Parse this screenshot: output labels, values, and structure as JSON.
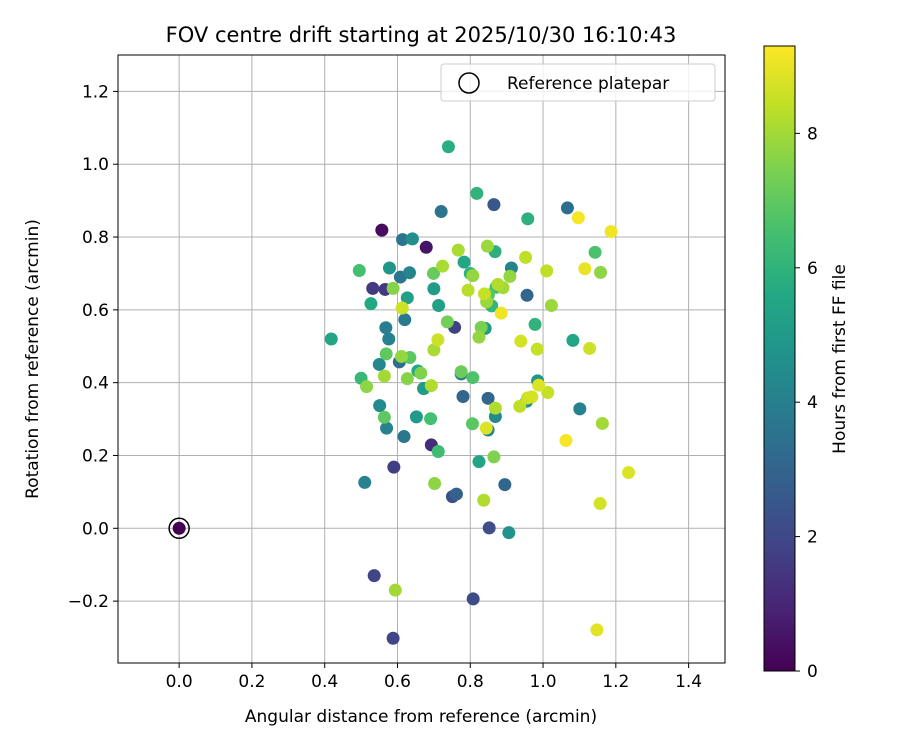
{
  "chart_data": {
    "type": "scatter",
    "title": "FOV centre drift starting at 2025/10/30 16:10:43",
    "xlabel": "Angular distance from reference (arcmin)",
    "ylabel": "Rotation from reference (arcmin)",
    "xlim": [
      -0.168,
      1.5
    ],
    "ylim": [
      -0.37,
      1.3
    ],
    "xticks": [
      0.0,
      0.2,
      0.4,
      0.6,
      0.8,
      1.0,
      1.2,
      1.4
    ],
    "xtick_labels": [
      "0.0",
      "0.2",
      "0.4",
      "0.6",
      "0.8",
      "1.0",
      "1.2",
      "1.4"
    ],
    "yticks": [
      -0.2,
      0.0,
      0.2,
      0.4,
      0.6,
      0.8,
      1.0,
      1.2
    ],
    "ytick_labels": [
      "−0.2",
      "0.0",
      "0.2",
      "0.4",
      "0.6",
      "0.8",
      "1.0",
      "1.2"
    ],
    "grid": true,
    "legend": {
      "placement": "top-right",
      "entries": [
        {
          "label": "Reference platepar",
          "marker": "open-circle"
        }
      ]
    },
    "reference_point": {
      "x": 0.0,
      "y": 0.0,
      "hours": 0.0
    },
    "colorbar": {
      "label": "Hours from first FF file",
      "range": [
        0,
        9.3
      ],
      "ticks": [
        0,
        2,
        4,
        6,
        8
      ],
      "tick_labels": [
        "0",
        "2",
        "4",
        "6",
        "8"
      ],
      "colormap": "viridis"
    },
    "series": [
      {
        "name": "FOV centre",
        "points": [
          {
            "x": 0.557,
            "y": 0.819,
            "h": 0.3
          },
          {
            "x": 0.679,
            "y": 0.772,
            "h": 0.5
          },
          {
            "x": 0.693,
            "y": 0.229,
            "h": 1.2
          },
          {
            "x": 0.532,
            "y": 0.659,
            "h": 1.6
          },
          {
            "x": 0.566,
            "y": 0.656,
            "h": 1.5
          },
          {
            "x": 0.757,
            "y": 0.552,
            "h": 1.8
          },
          {
            "x": 0.59,
            "y": 0.168,
            "h": 1.7
          },
          {
            "x": 0.536,
            "y": -0.13,
            "h": 1.9
          },
          {
            "x": 0.588,
            "y": -0.302,
            "h": 1.9
          },
          {
            "x": 0.808,
            "y": -0.194,
            "h": 2.1
          },
          {
            "x": 0.852,
            "y": 0.001,
            "h": 2.2
          },
          {
            "x": 0.751,
            "y": 0.087,
            "h": 2.2
          },
          {
            "x": 0.865,
            "y": 0.889,
            "h": 2.5
          },
          {
            "x": 0.672,
            "y": 0.384,
            "h": 2.8
          },
          {
            "x": 0.762,
            "y": 0.094,
            "h": 2.9
          },
          {
            "x": 0.78,
            "y": 0.362,
            "h": 3.0
          },
          {
            "x": 0.849,
            "y": 0.357,
            "h": 3.0
          },
          {
            "x": 0.895,
            "y": 0.12,
            "h": 3.1
          },
          {
            "x": 0.956,
            "y": 0.64,
            "h": 3.1
          },
          {
            "x": 0.605,
            "y": 0.457,
            "h": 3.3
          },
          {
            "x": 1.067,
            "y": 0.88,
            "h": 3.3
          },
          {
            "x": 0.72,
            "y": 0.87,
            "h": 3.6
          },
          {
            "x": 0.614,
            "y": 0.793,
            "h": 3.6
          },
          {
            "x": 0.608,
            "y": 0.69,
            "h": 3.6
          },
          {
            "x": 0.618,
            "y": 0.252,
            "h": 3.7
          },
          {
            "x": 0.775,
            "y": 0.424,
            "h": 3.7
          },
          {
            "x": 0.62,
            "y": 0.573,
            "h": 3.8
          },
          {
            "x": 0.568,
            "y": 0.551,
            "h": 3.9
          },
          {
            "x": 0.576,
            "y": 0.52,
            "h": 4.0
          },
          {
            "x": 0.57,
            "y": 0.275,
            "h": 4.1
          },
          {
            "x": 0.51,
            "y": 0.126,
            "h": 4.1
          },
          {
            "x": 1.101,
            "y": 0.328,
            "h": 4.1
          },
          {
            "x": 0.849,
            "y": 0.27,
            "h": 4.2
          },
          {
            "x": 0.913,
            "y": 0.715,
            "h": 4.2
          },
          {
            "x": 0.633,
            "y": 0.702,
            "h": 4.2
          },
          {
            "x": 0.55,
            "y": 0.45,
            "h": 4.3
          },
          {
            "x": 0.869,
            "y": 0.307,
            "h": 4.4
          },
          {
            "x": 0.551,
            "y": 0.337,
            "h": 4.4
          },
          {
            "x": 0.641,
            "y": 0.795,
            "h": 4.6
          },
          {
            "x": 0.906,
            "y": -0.012,
            "h": 4.7
          },
          {
            "x": 0.955,
            "y": 0.349,
            "h": 4.7
          },
          {
            "x": 0.985,
            "y": 0.405,
            "h": 4.8
          },
          {
            "x": 0.578,
            "y": 0.715,
            "h": 4.9
          },
          {
            "x": 0.841,
            "y": 0.549,
            "h": 5.0
          },
          {
            "x": 0.652,
            "y": 0.306,
            "h": 5.0
          },
          {
            "x": 0.7,
            "y": 0.658,
            "h": 5.1
          },
          {
            "x": 0.672,
            "y": 0.384,
            "h": 5.1
          },
          {
            "x": 0.627,
            "y": 0.633,
            "h": 5.2
          },
          {
            "x": 0.713,
            "y": 0.612,
            "h": 5.3
          },
          {
            "x": 0.824,
            "y": 0.183,
            "h": 5.4
          },
          {
            "x": 0.783,
            "y": 0.731,
            "h": 5.5
          },
          {
            "x": 1.082,
            "y": 0.516,
            "h": 5.5
          },
          {
            "x": 0.418,
            "y": 0.52,
            "h": 5.5
          },
          {
            "x": 0.527,
            "y": 0.617,
            "h": 5.6
          },
          {
            "x": 0.656,
            "y": 0.432,
            "h": 5.6
          },
          {
            "x": 0.74,
            "y": 1.048,
            "h": 5.8
          },
          {
            "x": 0.958,
            "y": 0.85,
            "h": 5.9
          },
          {
            "x": 0.868,
            "y": 0.76,
            "h": 5.9
          },
          {
            "x": 0.978,
            "y": 0.56,
            "h": 6.0
          },
          {
            "x": 0.8,
            "y": 0.7,
            "h": 6.0
          },
          {
            "x": 0.818,
            "y": 0.92,
            "h": 6.0
          },
          {
            "x": 0.859,
            "y": 0.611,
            "h": 6.1
          },
          {
            "x": 0.5,
            "y": 0.412,
            "h": 6.2
          },
          {
            "x": 0.712,
            "y": 0.211,
            "h": 6.4
          },
          {
            "x": 0.871,
            "y": 0.662,
            "h": 6.4
          },
          {
            "x": 0.691,
            "y": 0.301,
            "h": 6.5
          },
          {
            "x": 0.495,
            "y": 0.708,
            "h": 6.5
          },
          {
            "x": 1.143,
            "y": 0.758,
            "h": 6.6
          },
          {
            "x": 0.807,
            "y": 0.414,
            "h": 6.7
          },
          {
            "x": 0.85,
            "y": 0.641,
            "h": 6.8
          },
          {
            "x": 0.806,
            "y": 0.287,
            "h": 6.9
          },
          {
            "x": 0.634,
            "y": 0.469,
            "h": 6.9
          },
          {
            "x": 0.569,
            "y": 0.479,
            "h": 7.0
          },
          {
            "x": 0.564,
            "y": 0.305,
            "h": 7.0
          },
          {
            "x": 0.699,
            "y": 0.7,
            "h": 7.1
          },
          {
            "x": 0.775,
            "y": 0.43,
            "h": 7.2
          },
          {
            "x": 0.737,
            "y": 0.567,
            "h": 7.3
          },
          {
            "x": 0.83,
            "y": 0.552,
            "h": 7.4
          },
          {
            "x": 0.865,
            "y": 0.196,
            "h": 7.5
          },
          {
            "x": 0.664,
            "y": 0.426,
            "h": 7.5
          },
          {
            "x": 0.627,
            "y": 0.411,
            "h": 7.6
          },
          {
            "x": 0.588,
            "y": 0.659,
            "h": 7.6
          },
          {
            "x": 1.158,
            "y": 0.703,
            "h": 7.7
          },
          {
            "x": 0.702,
            "y": 0.123,
            "h": 7.7
          },
          {
            "x": 0.515,
            "y": 0.389,
            "h": 7.7
          },
          {
            "x": 0.807,
            "y": 0.694,
            "h": 7.8
          },
          {
            "x": 0.909,
            "y": 0.692,
            "h": 7.8
          },
          {
            "x": 0.611,
            "y": 0.472,
            "h": 7.8
          },
          {
            "x": 0.824,
            "y": 0.525,
            "h": 7.8
          },
          {
            "x": 0.847,
            "y": 0.775,
            "h": 7.9
          },
          {
            "x": 1.023,
            "y": 0.612,
            "h": 7.9
          },
          {
            "x": 0.845,
            "y": 0.622,
            "h": 7.9
          },
          {
            "x": 0.564,
            "y": 0.418,
            "h": 8.0
          },
          {
            "x": 0.594,
            "y": -0.17,
            "h": 8.0
          },
          {
            "x": 1.163,
            "y": 0.288,
            "h": 8.0
          },
          {
            "x": 0.89,
            "y": 0.661,
            "h": 8.0
          },
          {
            "x": 0.724,
            "y": 0.72,
            "h": 8.1
          },
          {
            "x": 0.7,
            "y": 0.49,
            "h": 8.1
          },
          {
            "x": 0.767,
            "y": 0.764,
            "h": 8.1
          },
          {
            "x": 0.869,
            "y": 0.33,
            "h": 8.2
          },
          {
            "x": 0.693,
            "y": 0.392,
            "h": 8.2
          },
          {
            "x": 0.837,
            "y": 0.077,
            "h": 8.2
          },
          {
            "x": 0.876,
            "y": 0.67,
            "h": 8.2
          },
          {
            "x": 0.794,
            "y": 0.654,
            "h": 8.3
          },
          {
            "x": 1.01,
            "y": 0.707,
            "h": 8.4
          },
          {
            "x": 0.936,
            "y": 0.335,
            "h": 8.4
          },
          {
            "x": 0.952,
            "y": 0.744,
            "h": 8.4
          },
          {
            "x": 0.984,
            "y": 0.492,
            "h": 8.5
          },
          {
            "x": 0.839,
            "y": 0.644,
            "h": 8.5
          },
          {
            "x": 1.013,
            "y": 0.373,
            "h": 8.5
          },
          {
            "x": 0.711,
            "y": 0.518,
            "h": 8.6
          },
          {
            "x": 0.957,
            "y": 0.358,
            "h": 8.6
          },
          {
            "x": 1.128,
            "y": 0.494,
            "h": 8.6
          },
          {
            "x": 0.613,
            "y": 0.605,
            "h": 8.6
          },
          {
            "x": 0.939,
            "y": 0.514,
            "h": 8.7
          },
          {
            "x": 0.969,
            "y": 0.361,
            "h": 8.7
          },
          {
            "x": 1.157,
            "y": 0.068,
            "h": 8.7
          },
          {
            "x": 0.844,
            "y": 0.275,
            "h": 8.8
          },
          {
            "x": 0.988,
            "y": 0.393,
            "h": 8.8
          },
          {
            "x": 1.235,
            "y": 0.153,
            "h": 8.8
          },
          {
            "x": 1.148,
            "y": -0.279,
            "h": 8.9
          },
          {
            "x": 1.115,
            "y": 0.713,
            "h": 9.0
          },
          {
            "x": 0.885,
            "y": 0.591,
            "h": 9.1
          },
          {
            "x": 1.187,
            "y": 0.815,
            "h": 9.1
          },
          {
            "x": 1.097,
            "y": 0.853,
            "h": 9.2
          },
          {
            "x": 1.063,
            "y": 0.241,
            "h": 9.2
          }
        ]
      }
    ]
  }
}
